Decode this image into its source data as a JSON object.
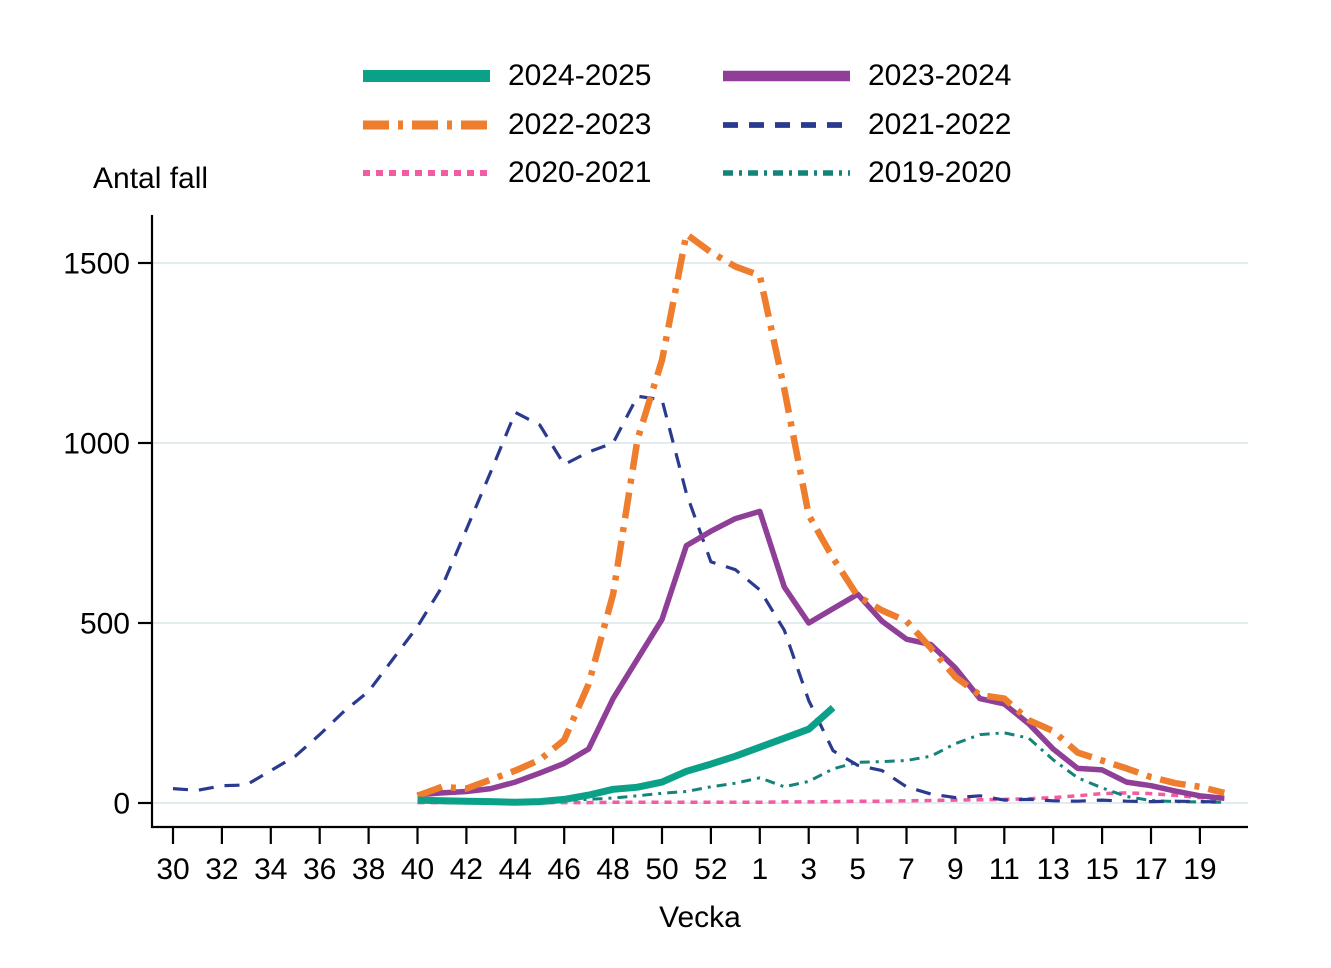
{
  "chart_data": {
    "type": "line",
    "title": "",
    "ylabel": "Antal fall",
    "xlabel": "Vecka",
    "y_ticks": [
      0,
      500,
      1000,
      1500
    ],
    "ylim": [
      0,
      1640
    ],
    "grid": true,
    "grid_color": "#e3ecef",
    "axis_color": "#000000",
    "week_order": [
      30,
      31,
      32,
      33,
      34,
      35,
      36,
      37,
      38,
      39,
      40,
      41,
      42,
      43,
      44,
      45,
      46,
      47,
      48,
      49,
      50,
      51,
      52,
      53,
      1,
      2,
      3,
      4,
      5,
      6,
      7,
      8,
      9,
      10,
      11,
      12,
      13,
      14,
      15,
      16,
      17,
      18,
      19,
      20
    ],
    "x_tick_labels": [
      30,
      32,
      34,
      36,
      38,
      40,
      42,
      44,
      46,
      48,
      50,
      52,
      1,
      3,
      5,
      7,
      9,
      11,
      13,
      15,
      17,
      19
    ],
    "series": [
      {
        "name": "2024-2025",
        "color": "#0ba188",
        "style": "solid",
        "width": 7,
        "points": [
          [
            40,
            8
          ],
          [
            41,
            6
          ],
          [
            42,
            5
          ],
          [
            43,
            4
          ],
          [
            44,
            2
          ],
          [
            45,
            4
          ],
          [
            46,
            10
          ],
          [
            47,
            22
          ],
          [
            48,
            38
          ],
          [
            49,
            44
          ],
          [
            50,
            58
          ],
          [
            51,
            88
          ],
          [
            52,
            108
          ],
          [
            53,
            130
          ],
          [
            1,
            155
          ],
          [
            2,
            180
          ],
          [
            3,
            205
          ],
          [
            4,
            265
          ]
        ]
      },
      {
        "name": "2023-2024",
        "color": "#8f3f97",
        "style": "solid",
        "width": 5.5,
        "points": [
          [
            40,
            23
          ],
          [
            41,
            28
          ],
          [
            42,
            32
          ],
          [
            43,
            40
          ],
          [
            44,
            58
          ],
          [
            45,
            83
          ],
          [
            46,
            110
          ],
          [
            47,
            150
          ],
          [
            48,
            290
          ],
          [
            49,
            400
          ],
          [
            50,
            510
          ],
          [
            51,
            715
          ],
          [
            52,
            755
          ],
          [
            53,
            790
          ],
          [
            1,
            810
          ],
          [
            2,
            600
          ],
          [
            3,
            500
          ],
          [
            4,
            540
          ],
          [
            5,
            580
          ],
          [
            6,
            505
          ],
          [
            7,
            455
          ],
          [
            8,
            440
          ],
          [
            9,
            375
          ],
          [
            10,
            290
          ],
          [
            11,
            275
          ],
          [
            12,
            220
          ],
          [
            13,
            150
          ],
          [
            14,
            96
          ],
          [
            15,
            92
          ],
          [
            16,
            58
          ],
          [
            17,
            48
          ],
          [
            18,
            33
          ],
          [
            19,
            20
          ],
          [
            20,
            13
          ]
        ]
      },
      {
        "name": "2022-2023",
        "color": "#ee7d2e",
        "style": "dash-dot-long",
        "width": 6.5,
        "points": [
          [
            40,
            20
          ],
          [
            41,
            45
          ],
          [
            42,
            40
          ],
          [
            43,
            65
          ],
          [
            44,
            90
          ],
          [
            45,
            120
          ],
          [
            46,
            175
          ],
          [
            47,
            330
          ],
          [
            48,
            580
          ],
          [
            49,
            1010
          ],
          [
            50,
            1230
          ],
          [
            51,
            1580
          ],
          [
            52,
            1530
          ],
          [
            53,
            1490
          ],
          [
            1,
            1465
          ],
          [
            2,
            1150
          ],
          [
            3,
            800
          ],
          [
            4,
            680
          ],
          [
            5,
            575
          ],
          [
            6,
            535
          ],
          [
            7,
            505
          ],
          [
            8,
            430
          ],
          [
            9,
            350
          ],
          [
            10,
            300
          ],
          [
            11,
            290
          ],
          [
            12,
            230
          ],
          [
            13,
            200
          ],
          [
            14,
            140
          ],
          [
            15,
            118
          ],
          [
            16,
            96
          ],
          [
            17,
            72
          ],
          [
            18,
            55
          ],
          [
            19,
            45
          ],
          [
            20,
            28
          ]
        ]
      },
      {
        "name": "2021-2022",
        "color": "#2a3b8f",
        "style": "dashed",
        "width": 3.2,
        "points": [
          [
            30,
            40
          ],
          [
            31,
            35
          ],
          [
            32,
            48
          ],
          [
            33,
            50
          ],
          [
            34,
            90
          ],
          [
            35,
            130
          ],
          [
            36,
            190
          ],
          [
            37,
            255
          ],
          [
            38,
            310
          ],
          [
            39,
            400
          ],
          [
            40,
            490
          ],
          [
            41,
            600
          ],
          [
            42,
            760
          ],
          [
            43,
            920
          ],
          [
            44,
            1085
          ],
          [
            45,
            1050
          ],
          [
            46,
            940
          ],
          [
            47,
            975
          ],
          [
            48,
            1000
          ],
          [
            49,
            1130
          ],
          [
            50,
            1120
          ],
          [
            51,
            860
          ],
          [
            52,
            670
          ],
          [
            53,
            648
          ],
          [
            1,
            592
          ],
          [
            2,
            480
          ],
          [
            3,
            285
          ],
          [
            4,
            145
          ],
          [
            5,
            105
          ],
          [
            6,
            90
          ],
          [
            7,
            45
          ],
          [
            8,
            25
          ],
          [
            9,
            15
          ],
          [
            10,
            20
          ],
          [
            11,
            8
          ],
          [
            12,
            10
          ],
          [
            13,
            6
          ],
          [
            14,
            5
          ],
          [
            15,
            8
          ],
          [
            16,
            5
          ],
          [
            17,
            4
          ],
          [
            18,
            5
          ],
          [
            19,
            4
          ],
          [
            20,
            3
          ]
        ]
      },
      {
        "name": "2020-2021",
        "color": "#f25ca2",
        "style": "dotted",
        "width": 3.5,
        "points": [
          [
            40,
            1
          ],
          [
            41,
            1
          ],
          [
            42,
            1
          ],
          [
            43,
            1
          ],
          [
            44,
            1
          ],
          [
            45,
            1
          ],
          [
            46,
            1
          ],
          [
            47,
            1
          ],
          [
            48,
            2
          ],
          [
            49,
            2
          ],
          [
            50,
            2
          ],
          [
            51,
            2
          ],
          [
            52,
            2
          ],
          [
            53,
            2
          ],
          [
            1,
            2
          ],
          [
            2,
            3
          ],
          [
            3,
            3
          ],
          [
            4,
            4
          ],
          [
            5,
            5
          ],
          [
            6,
            5
          ],
          [
            7,
            6
          ],
          [
            8,
            7
          ],
          [
            9,
            8
          ],
          [
            10,
            9
          ],
          [
            11,
            10
          ],
          [
            12,
            12
          ],
          [
            13,
            15
          ],
          [
            14,
            20
          ],
          [
            15,
            26
          ],
          [
            16,
            28
          ],
          [
            17,
            26
          ],
          [
            18,
            21
          ],
          [
            19,
            15
          ],
          [
            20,
            10
          ]
        ]
      },
      {
        "name": "2019-2020",
        "color": "#15837a",
        "style": "dash-dot-short",
        "width": 3,
        "points": [
          [
            40,
            3
          ],
          [
            41,
            3
          ],
          [
            42,
            3
          ],
          [
            43,
            4
          ],
          [
            44,
            5
          ],
          [
            45,
            6
          ],
          [
            46,
            8
          ],
          [
            47,
            10
          ],
          [
            48,
            14
          ],
          [
            49,
            20
          ],
          [
            50,
            27
          ],
          [
            51,
            32
          ],
          [
            52,
            45
          ],
          [
            53,
            55
          ],
          [
            1,
            70
          ],
          [
            2,
            45
          ],
          [
            3,
            60
          ],
          [
            4,
            95
          ],
          [
            5,
            113
          ],
          [
            6,
            115
          ],
          [
            7,
            118
          ],
          [
            8,
            130
          ],
          [
            9,
            165
          ],
          [
            10,
            190
          ],
          [
            11,
            195
          ],
          [
            12,
            180
          ],
          [
            13,
            120
          ],
          [
            14,
            70
          ],
          [
            15,
            42
          ],
          [
            16,
            18
          ],
          [
            17,
            7
          ],
          [
            18,
            4
          ],
          [
            19,
            3
          ],
          [
            20,
            2
          ]
        ]
      }
    ],
    "legend": {
      "rows": [
        [
          "2024-2025",
          "2023-2024"
        ],
        [
          "2022-2023",
          "2021-2022"
        ],
        [
          "2020-2021",
          "2019-2020"
        ]
      ],
      "position": "top"
    }
  }
}
